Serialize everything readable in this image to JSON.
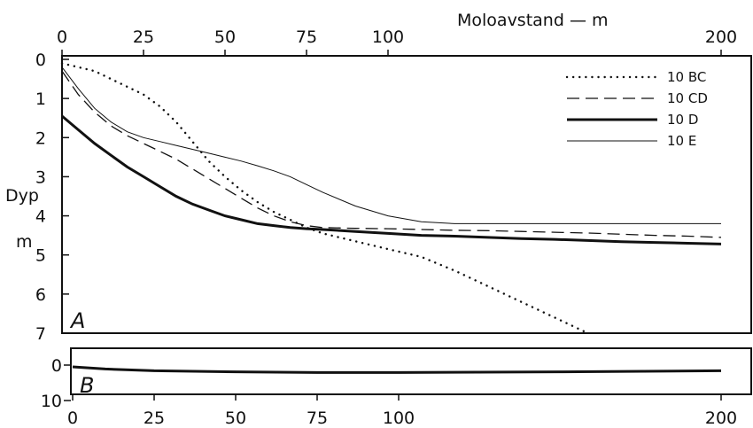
{
  "chart_data": [
    {
      "id": "A",
      "type": "line",
      "panel_label": "A",
      "xlabel": "Moloavstand — m",
      "ylabel": "Dyp",
      "yunit": "m",
      "xlim": [
        0,
        200
      ],
      "ylim": [
        0,
        7
      ],
      "y_inverted": true,
      "x_scale": "piecewise",
      "x_ticks": [
        0,
        25,
        50,
        75,
        100,
        200
      ],
      "y_ticks": [
        0,
        1,
        2,
        3,
        4,
        5,
        6,
        7
      ],
      "legend_position": "top-right",
      "grid": false,
      "series": [
        {
          "name": "10 BC",
          "style": "dotted",
          "x": [
            0,
            5,
            10,
            15,
            20,
            25,
            30,
            35,
            40,
            45,
            50,
            55,
            60,
            65,
            70,
            75,
            80,
            90,
            100,
            110,
            120,
            130,
            140,
            150,
            160
          ],
          "y": [
            0.1,
            0.2,
            0.3,
            0.5,
            0.7,
            0.9,
            1.2,
            1.6,
            2.1,
            2.6,
            3.0,
            3.35,
            3.65,
            3.9,
            4.1,
            4.3,
            4.45,
            4.65,
            4.85,
            5.05,
            5.4,
            5.8,
            6.2,
            6.6,
            7.0
          ]
        },
        {
          "name": "10 CD",
          "style": "dashed",
          "x": [
            0,
            5,
            10,
            15,
            20,
            25,
            30,
            35,
            40,
            45,
            50,
            55,
            60,
            65,
            70,
            75,
            80,
            90,
            100,
            110,
            120,
            130,
            140,
            150,
            160,
            170,
            180,
            190,
            200
          ],
          "y": [
            0.3,
            0.9,
            1.35,
            1.7,
            1.95,
            2.15,
            2.35,
            2.55,
            2.8,
            3.05,
            3.3,
            3.55,
            3.8,
            4.0,
            4.15,
            4.25,
            4.3,
            4.32,
            4.33,
            4.35,
            4.37,
            4.38,
            4.4,
            4.42,
            4.44,
            4.47,
            4.5,
            4.52,
            4.55
          ]
        },
        {
          "name": "10 D",
          "style": "thick",
          "x": [
            0,
            5,
            10,
            15,
            20,
            25,
            30,
            35,
            40,
            45,
            50,
            55,
            60,
            65,
            70,
            75,
            80,
            90,
            100,
            110,
            120,
            130,
            140,
            150,
            160,
            170,
            180,
            190,
            200
          ],
          "y": [
            1.45,
            1.8,
            2.15,
            2.45,
            2.75,
            3.0,
            3.25,
            3.5,
            3.7,
            3.85,
            4.0,
            4.1,
            4.2,
            4.25,
            4.3,
            4.33,
            4.35,
            4.4,
            4.45,
            4.5,
            4.52,
            4.55,
            4.58,
            4.6,
            4.63,
            4.66,
            4.68,
            4.7,
            4.72
          ]
        },
        {
          "name": "10 E",
          "style": "thin",
          "x": [
            0,
            5,
            10,
            15,
            20,
            25,
            30,
            35,
            40,
            45,
            50,
            55,
            60,
            65,
            70,
            75,
            80,
            90,
            100,
            110,
            120,
            130,
            140,
            150,
            160,
            170,
            180,
            190,
            200
          ],
          "y": [
            0.2,
            0.75,
            1.25,
            1.6,
            1.85,
            2.0,
            2.1,
            2.2,
            2.3,
            2.4,
            2.5,
            2.6,
            2.72,
            2.85,
            3.0,
            3.2,
            3.4,
            3.75,
            4.0,
            4.15,
            4.2,
            4.2,
            4.2,
            4.2,
            4.2,
            4.2,
            4.2,
            4.2,
            4.2
          ]
        }
      ]
    },
    {
      "id": "B",
      "type": "line",
      "panel_label": "B",
      "xlim": [
        0,
        200
      ],
      "ylim": [
        0,
        10
      ],
      "y_inverted": true,
      "x_scale": "piecewise",
      "x_ticks": [
        0,
        25,
        50,
        75,
        100,
        200
      ],
      "y_ticks": [
        0,
        10
      ],
      "grid": false,
      "series": [
        {
          "style": "thick",
          "x": [
            0,
            10,
            25,
            50,
            75,
            100,
            150,
            200
          ],
          "y": [
            0.5,
            1.1,
            1.6,
            1.9,
            2.1,
            2.1,
            1.9,
            1.6
          ]
        }
      ]
    }
  ]
}
